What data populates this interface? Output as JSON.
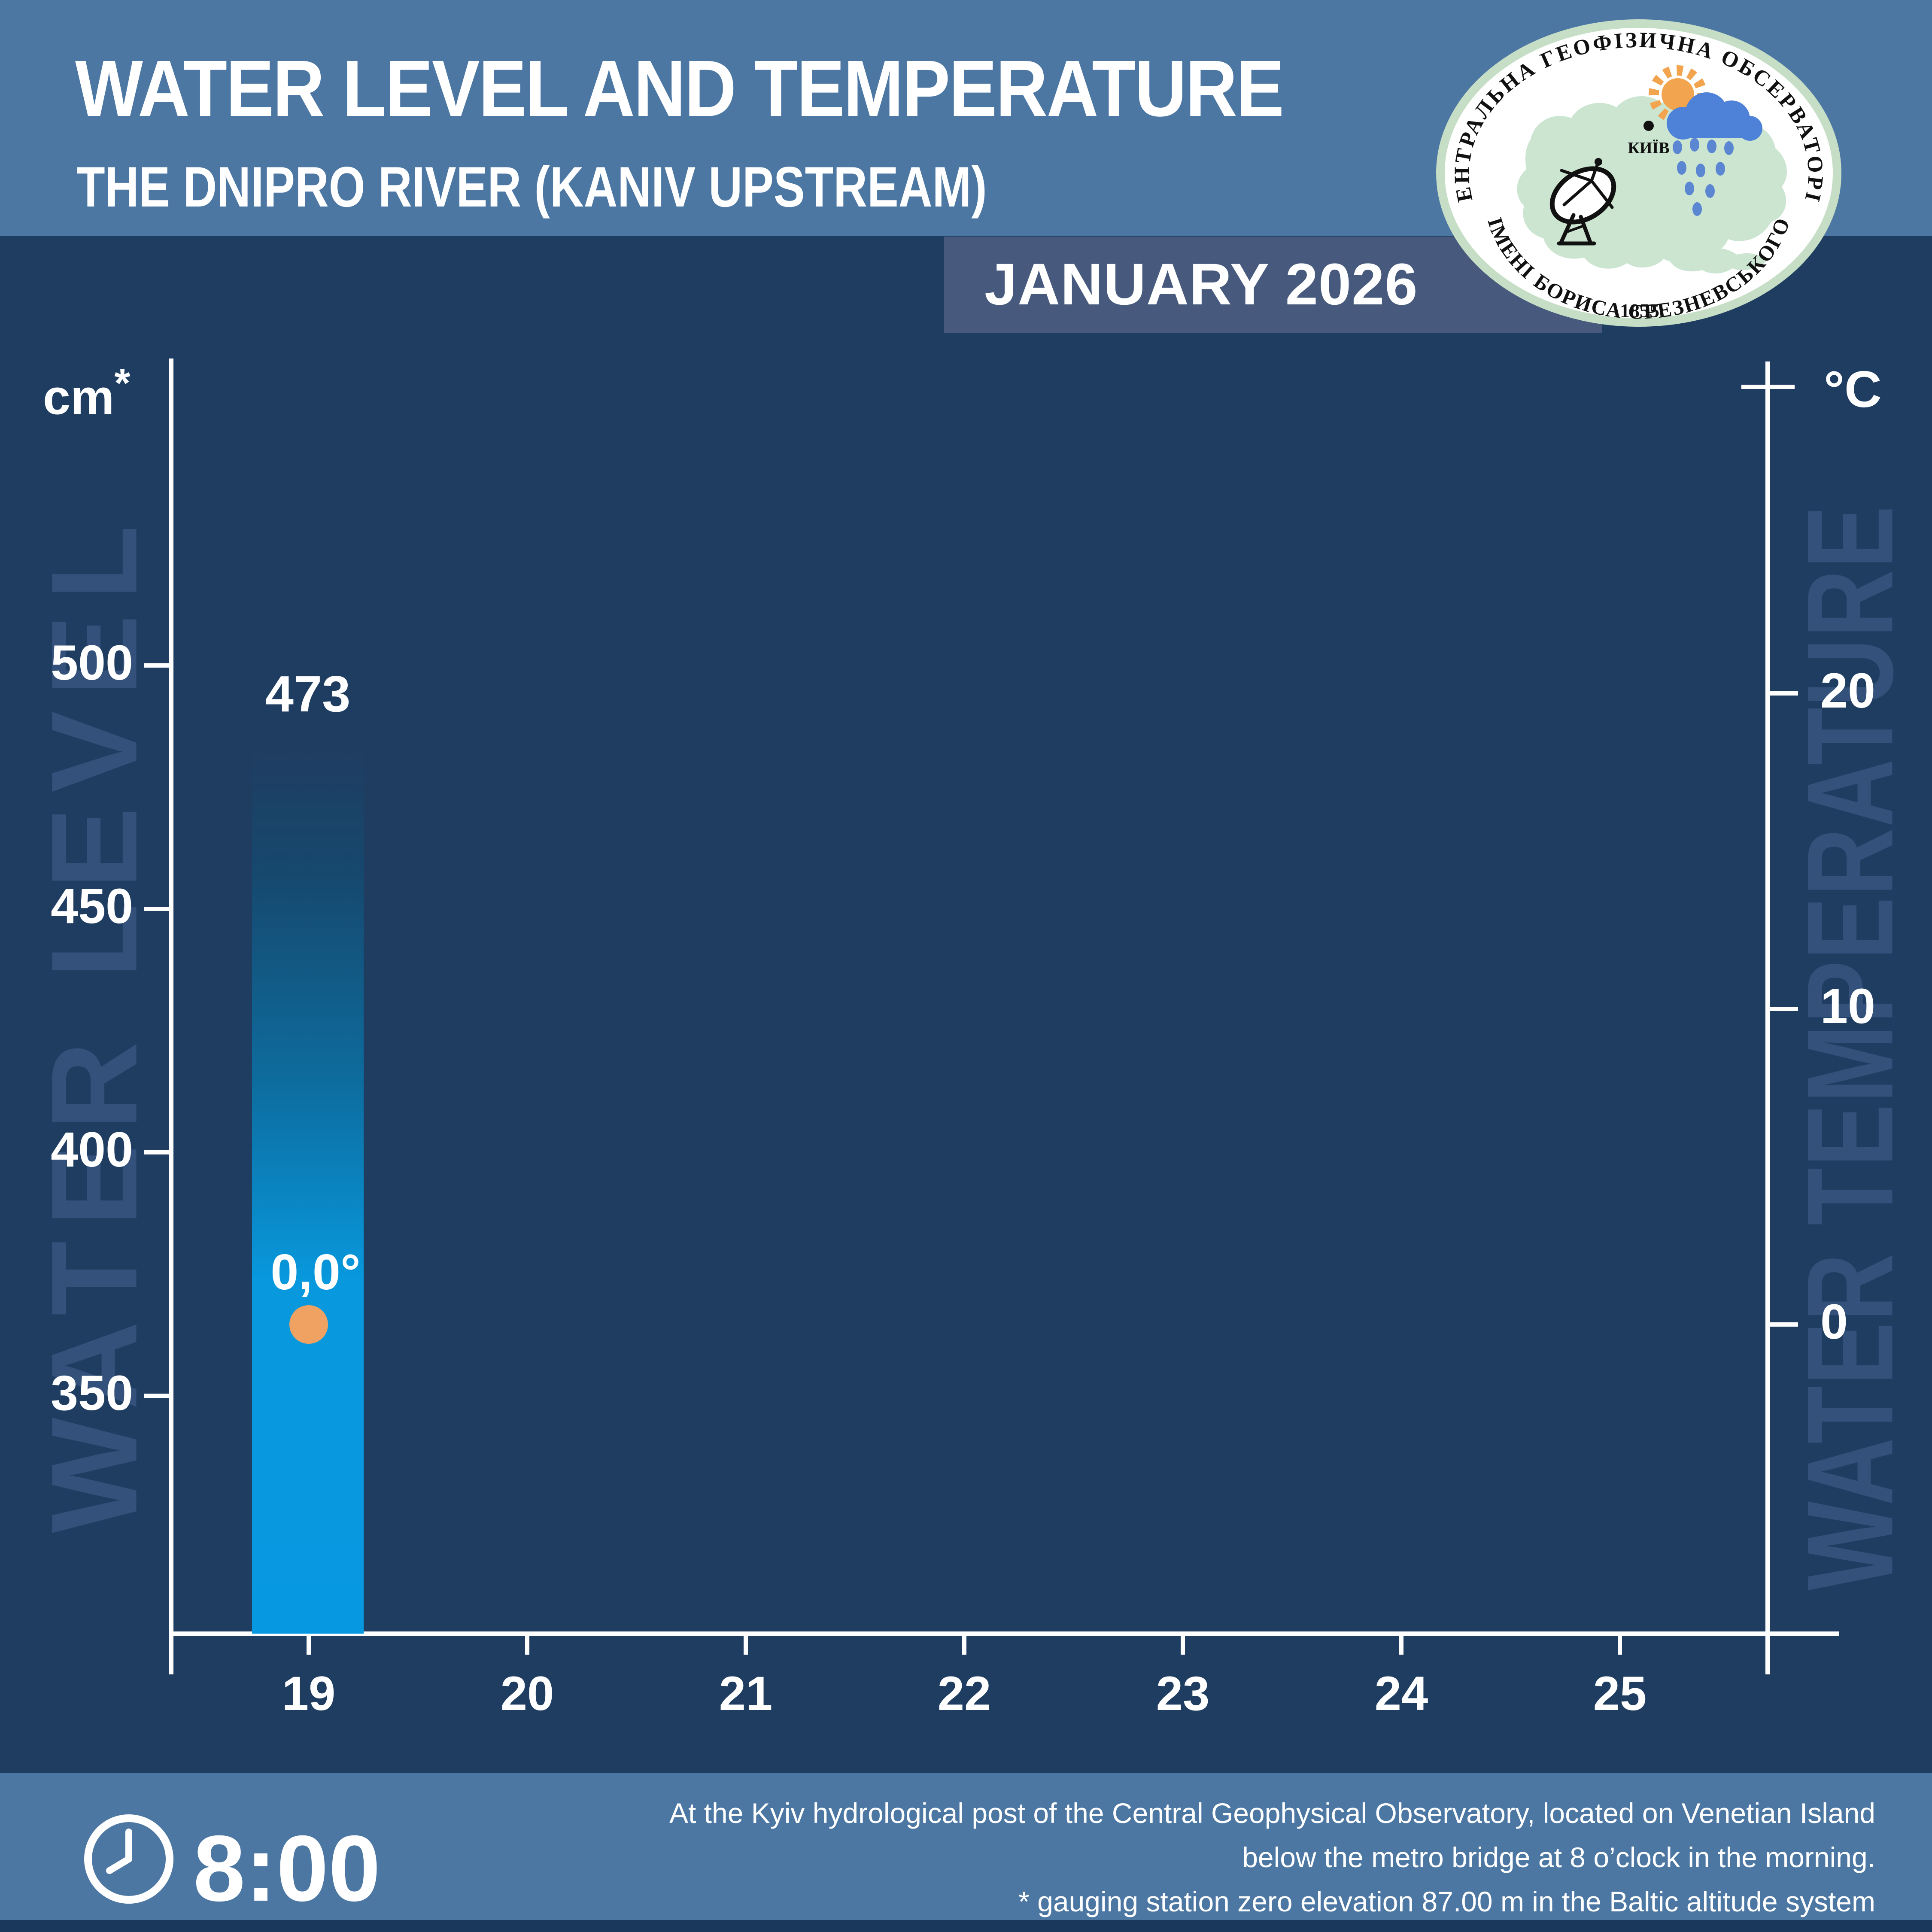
{
  "header": {
    "title": "WATER LEVEL AND TEMPERATURE",
    "subtitle": "THE DNIPRO RIVER (KANIV UPSTREAM)",
    "month_banner": "JANUARY 2026"
  },
  "logo": {
    "top_text": "ЦЕНТРАЛЬНА ГЕОФІЗИЧНА ОБСЕРВАТОРІЯ",
    "bottom_text": "ІМЕНІ БОРИСА СРЕЗНЕВСЬКОГО",
    "year": "1855",
    "city_label": "КИЇВ"
  },
  "chart_data": {
    "type": "bar",
    "title": "WATER LEVEL AND TEMPERATURE",
    "subtitle": "THE DNIPRO RIVER (KANIV UPSTREAM)",
    "period": "JANUARY 2026",
    "categories": [
      19,
      20,
      21,
      22,
      23,
      24,
      25
    ],
    "series": [
      {
        "name": "Water level",
        "unit": "cm",
        "type": "bar",
        "values": [
          473,
          null,
          null,
          null,
          null,
          null,
          null
        ]
      },
      {
        "name": "Water temperature",
        "unit": "°C",
        "type": "point",
        "values": [
          0.0,
          null,
          null,
          null,
          null,
          null,
          null
        ]
      }
    ],
    "bar_label": "473",
    "temp_label": "0,0°",
    "left_axis": {
      "unit": "cm",
      "unit_mark": "*",
      "ticks": [
        500,
        450,
        400,
        350
      ]
    },
    "right_axis": {
      "unit": "°C",
      "ticks": [
        20,
        10,
        0
      ]
    },
    "watermark_left": "WATER LEVEL",
    "watermark_right": "WATER TEMPERATURE",
    "grid": false,
    "legend": false
  },
  "footer": {
    "time": "8:00",
    "lines": [
      "At the Kyiv hydrological post of the Central Geophysical Observatory, located on Venetian Island",
      "below the metro bridge  at 8 o’clock in the morning.",
      "* gauging station zero elevation 87.00 m in the Baltic altitude system"
    ]
  },
  "colors": {
    "background": "#1F3D61",
    "band_blue": "#4C77A3",
    "banner_blue": "#475A7D",
    "bar_blue": "#0798E2",
    "temp_orange": "#EFA262",
    "watermark": "#33517A",
    "logo_ring_green": "#C6DEC6",
    "logo_map_green": "#CBE5D1",
    "logo_cloud_blue": "#4D82D8",
    "logo_sun_orange": "#F2A44E",
    "bottom_strip": "#1A375C"
  }
}
